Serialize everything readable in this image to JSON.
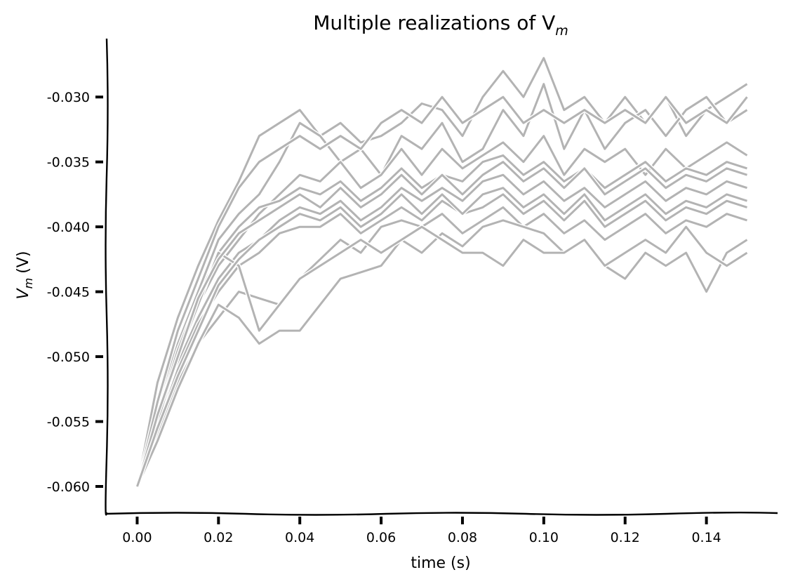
{
  "chart_data": {
    "type": "line",
    "title": "Multiple realizations of V",
    "title_subscript": "m",
    "xlabel": "time (s)",
    "ylabel_main": "V",
    "ylabel_sub": "m",
    "ylabel_suffix": "(V)",
    "xlim": [
      -0.0075,
      0.1575
    ],
    "ylim": [
      -0.062,
      -0.0255
    ],
    "x_ticks": [
      0.0,
      0.02,
      0.04,
      0.06,
      0.08,
      0.1,
      0.12,
      0.14
    ],
    "x_tick_labels": [
      "0.00",
      "0.02",
      "0.04",
      "0.06",
      "0.08",
      "0.10",
      "0.12",
      "0.14"
    ],
    "y_ticks": [
      -0.03,
      -0.035,
      -0.04,
      -0.045,
      -0.05,
      -0.055,
      -0.06
    ],
    "y_tick_labels": [
      "-0.030",
      "-0.035",
      "-0.040",
      "-0.045",
      "-0.050",
      "-0.055",
      "-0.060"
    ],
    "grid": false,
    "legend": "none",
    "line_color": "#b3b3b3",
    "x_sample_times": [
      0.0,
      0.005,
      0.01,
      0.015,
      0.02,
      0.025,
      0.03,
      0.035,
      0.04,
      0.045,
      0.05,
      0.055,
      0.06,
      0.065,
      0.07,
      0.075,
      0.08,
      0.085,
      0.09,
      0.095,
      0.1,
      0.105,
      0.11,
      0.115,
      0.12,
      0.125,
      0.13,
      0.135,
      0.14,
      0.145,
      0.15
    ],
    "series": [
      {
        "values": [
          -0.06,
          -0.052,
          -0.047,
          -0.043,
          -0.0395,
          -0.0365,
          -0.033,
          -0.032,
          -0.031,
          -0.033,
          -0.032,
          -0.0335,
          -0.033,
          -0.032,
          -0.0305,
          -0.031,
          -0.033,
          -0.03,
          -0.028,
          -0.03,
          -0.027,
          -0.031,
          -0.03,
          -0.032,
          -0.03,
          -0.032,
          -0.03,
          -0.033,
          -0.031,
          -0.03,
          -0.029
        ]
      },
      {
        "values": [
          -0.06,
          -0.054,
          -0.049,
          -0.045,
          -0.041,
          -0.039,
          -0.0375,
          -0.035,
          -0.032,
          -0.033,
          -0.035,
          -0.034,
          -0.036,
          -0.033,
          -0.034,
          -0.032,
          -0.035,
          -0.034,
          -0.031,
          -0.033,
          -0.029,
          -0.034,
          -0.031,
          -0.034,
          -0.032,
          -0.031,
          -0.033,
          -0.031,
          -0.03,
          -0.032,
          -0.031
        ]
      },
      {
        "values": [
          -0.06,
          -0.055,
          -0.05,
          -0.046,
          -0.043,
          -0.041,
          -0.039,
          -0.0375,
          -0.036,
          -0.0365,
          -0.035,
          -0.037,
          -0.036,
          -0.034,
          -0.036,
          -0.034,
          -0.0355,
          -0.0345,
          -0.0335,
          -0.035,
          -0.033,
          -0.036,
          -0.034,
          -0.035,
          -0.034,
          -0.036,
          -0.034,
          -0.0355,
          -0.0345,
          -0.0335,
          -0.0345
        ]
      },
      {
        "values": [
          -0.06,
          -0.0545,
          -0.0495,
          -0.0455,
          -0.042,
          -0.04,
          -0.0385,
          -0.038,
          -0.037,
          -0.0375,
          -0.0365,
          -0.038,
          -0.037,
          -0.0355,
          -0.037,
          -0.036,
          -0.0365,
          -0.035,
          -0.0345,
          -0.036,
          -0.035,
          -0.0365,
          -0.0355,
          -0.037,
          -0.036,
          -0.035,
          -0.0365,
          -0.0355,
          -0.036,
          -0.035,
          -0.0355
        ]
      },
      {
        "values": [
          -0.06,
          -0.055,
          -0.0505,
          -0.047,
          -0.044,
          -0.042,
          -0.041,
          -0.0395,
          -0.0385,
          -0.039,
          -0.038,
          -0.0395,
          -0.0385,
          -0.037,
          -0.038,
          -0.037,
          -0.038,
          -0.0365,
          -0.036,
          -0.0375,
          -0.0365,
          -0.038,
          -0.037,
          -0.0385,
          -0.0375,
          -0.0365,
          -0.038,
          -0.037,
          -0.0375,
          -0.0365,
          -0.037
        ]
      },
      {
        "values": [
          -0.06,
          -0.0555,
          -0.051,
          -0.0475,
          -0.045,
          -0.043,
          -0.042,
          -0.0405,
          -0.04,
          -0.04,
          -0.039,
          -0.0405,
          -0.0395,
          -0.0385,
          -0.0395,
          -0.038,
          -0.039,
          -0.0385,
          -0.0375,
          -0.039,
          -0.038,
          -0.0395,
          -0.038,
          -0.04,
          -0.039,
          -0.038,
          -0.0395,
          -0.0385,
          -0.039,
          -0.038,
          -0.0385
        ]
      },
      {
        "values": [
          -0.06,
          -0.056,
          -0.052,
          -0.049,
          -0.047,
          -0.045,
          -0.0455,
          -0.046,
          -0.044,
          -0.0425,
          -0.041,
          -0.042,
          -0.04,
          -0.0395,
          -0.04,
          -0.039,
          -0.0405,
          -0.0395,
          -0.0385,
          -0.04,
          -0.039,
          -0.0405,
          -0.0395,
          -0.041,
          -0.04,
          -0.039,
          -0.0405,
          -0.0395,
          -0.04,
          -0.039,
          -0.0395
        ]
      },
      {
        "values": [
          -0.06,
          -0.0565,
          -0.0525,
          -0.049,
          -0.046,
          -0.047,
          -0.049,
          -0.048,
          -0.048,
          -0.046,
          -0.044,
          -0.0435,
          -0.043,
          -0.041,
          -0.042,
          -0.0405,
          -0.0415,
          -0.04,
          -0.0395,
          -0.04,
          -0.0405,
          -0.042,
          -0.041,
          -0.043,
          -0.044,
          -0.042,
          -0.043,
          -0.042,
          -0.045,
          -0.042,
          -0.041
        ]
      },
      {
        "values": [
          -0.06,
          -0.055,
          -0.05,
          -0.046,
          -0.042,
          -0.043,
          -0.048,
          -0.046,
          -0.044,
          -0.043,
          -0.042,
          -0.041,
          -0.042,
          -0.041,
          -0.04,
          -0.041,
          -0.042,
          -0.042,
          -0.043,
          -0.041,
          -0.042,
          -0.042,
          -0.041,
          -0.043,
          -0.042,
          -0.041,
          -0.042,
          -0.04,
          -0.042,
          -0.043,
          -0.042
        ]
      },
      {
        "values": [
          -0.06,
          -0.0535,
          -0.048,
          -0.044,
          -0.04,
          -0.037,
          -0.035,
          -0.034,
          -0.033,
          -0.034,
          -0.033,
          -0.034,
          -0.032,
          -0.031,
          -0.032,
          -0.03,
          -0.032,
          -0.031,
          -0.03,
          -0.032,
          -0.031,
          -0.032,
          -0.031,
          -0.032,
          -0.031,
          -0.032,
          -0.03,
          -0.032,
          -0.031,
          -0.032,
          -0.03
        ]
      },
      {
        "values": [
          -0.06,
          -0.0545,
          -0.05,
          -0.0455,
          -0.0425,
          -0.0405,
          -0.0395,
          -0.0385,
          -0.0375,
          -0.0385,
          -0.037,
          -0.0385,
          -0.0375,
          -0.036,
          -0.0375,
          -0.036,
          -0.0375,
          -0.036,
          -0.035,
          -0.0365,
          -0.0355,
          -0.037,
          -0.0355,
          -0.0375,
          -0.0365,
          -0.0355,
          -0.037,
          -0.036,
          -0.0365,
          -0.0355,
          -0.036
        ]
      },
      {
        "values": [
          -0.06,
          -0.0555,
          -0.0515,
          -0.048,
          -0.0445,
          -0.0425,
          -0.041,
          -0.04,
          -0.039,
          -0.0395,
          -0.0385,
          -0.04,
          -0.039,
          -0.0375,
          -0.039,
          -0.0375,
          -0.039,
          -0.0375,
          -0.037,
          -0.0385,
          -0.0375,
          -0.039,
          -0.0375,
          -0.0395,
          -0.0385,
          -0.0375,
          -0.039,
          -0.038,
          -0.0385,
          -0.0375,
          -0.038
        ]
      }
    ]
  }
}
